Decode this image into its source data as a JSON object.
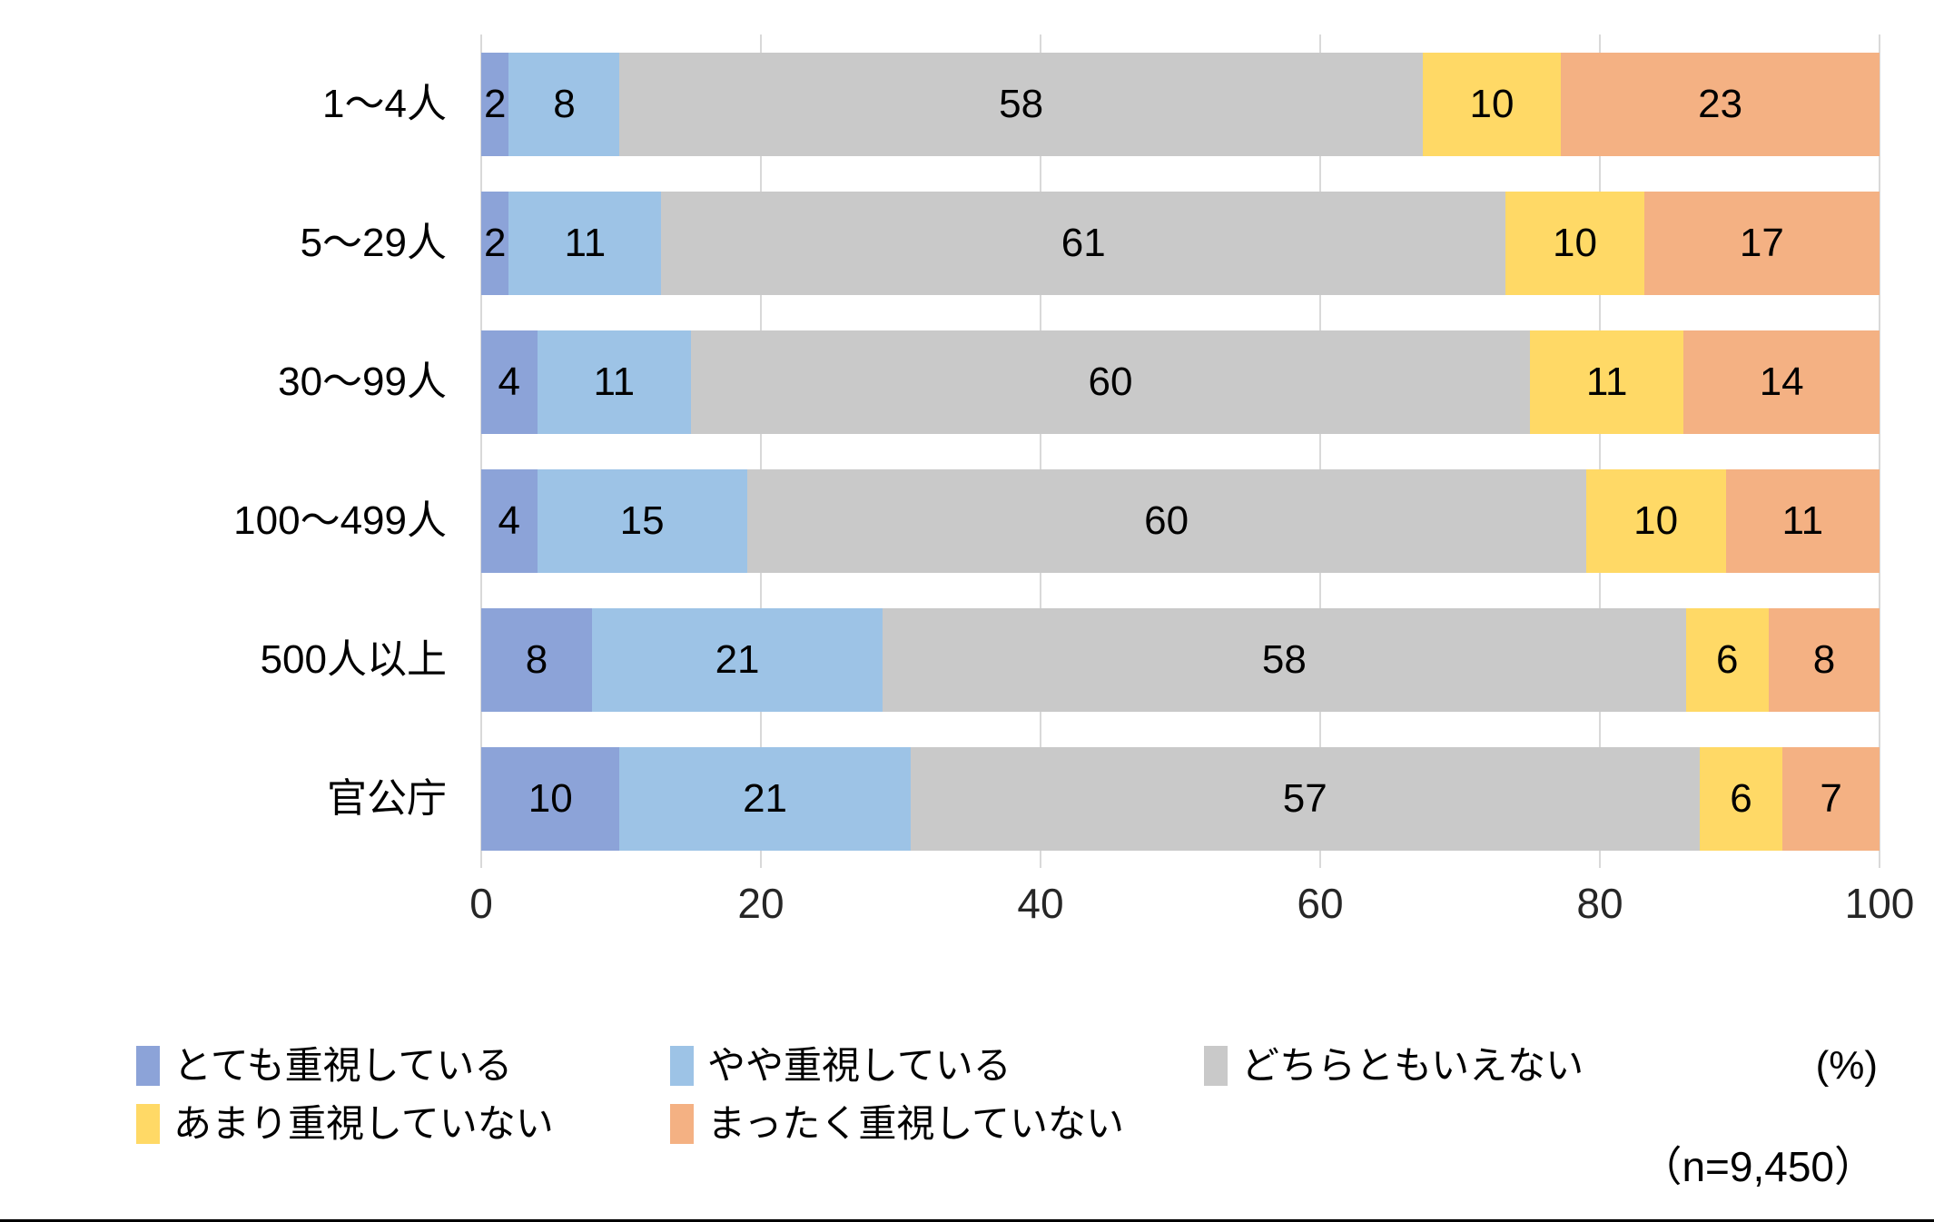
{
  "chart_data": {
    "type": "bar",
    "orientation": "horizontal-stacked",
    "title": "",
    "xlabel": "",
    "ylabel": "",
    "categories": [
      "1〜4人",
      "5〜29人",
      "30〜99人",
      "100〜499人",
      "500人以上",
      "官公庁"
    ],
    "series": [
      {
        "name": "とても重視している",
        "color": "#8ca3d8",
        "values": [
          2,
          2,
          4,
          4,
          8,
          10
        ]
      },
      {
        "name": "やや重視している",
        "color": "#9dc3e6",
        "values": [
          8,
          11,
          11,
          15,
          21,
          21
        ]
      },
      {
        "name": "どちらともいえない",
        "color": "#c9c9c9",
        "values": [
          58,
          61,
          60,
          60,
          58,
          57
        ]
      },
      {
        "name": "あまり重視していない",
        "color": "#ffd966",
        "values": [
          10,
          10,
          11,
          10,
          6,
          6
        ]
      },
      {
        "name": "まったく重視していない",
        "color": "#f4b183",
        "values": [
          23,
          17,
          14,
          11,
          8,
          7
        ]
      }
    ],
    "x_ticks": [
      "0",
      "20",
      "40",
      "60",
      "80",
      "100"
    ],
    "xlim": [
      0,
      100
    ],
    "grid": true,
    "gridline_color": "#d9d9d9",
    "legend_position": "bottom",
    "unit_label": "(%)",
    "sample_label": "（n=9,450）"
  }
}
